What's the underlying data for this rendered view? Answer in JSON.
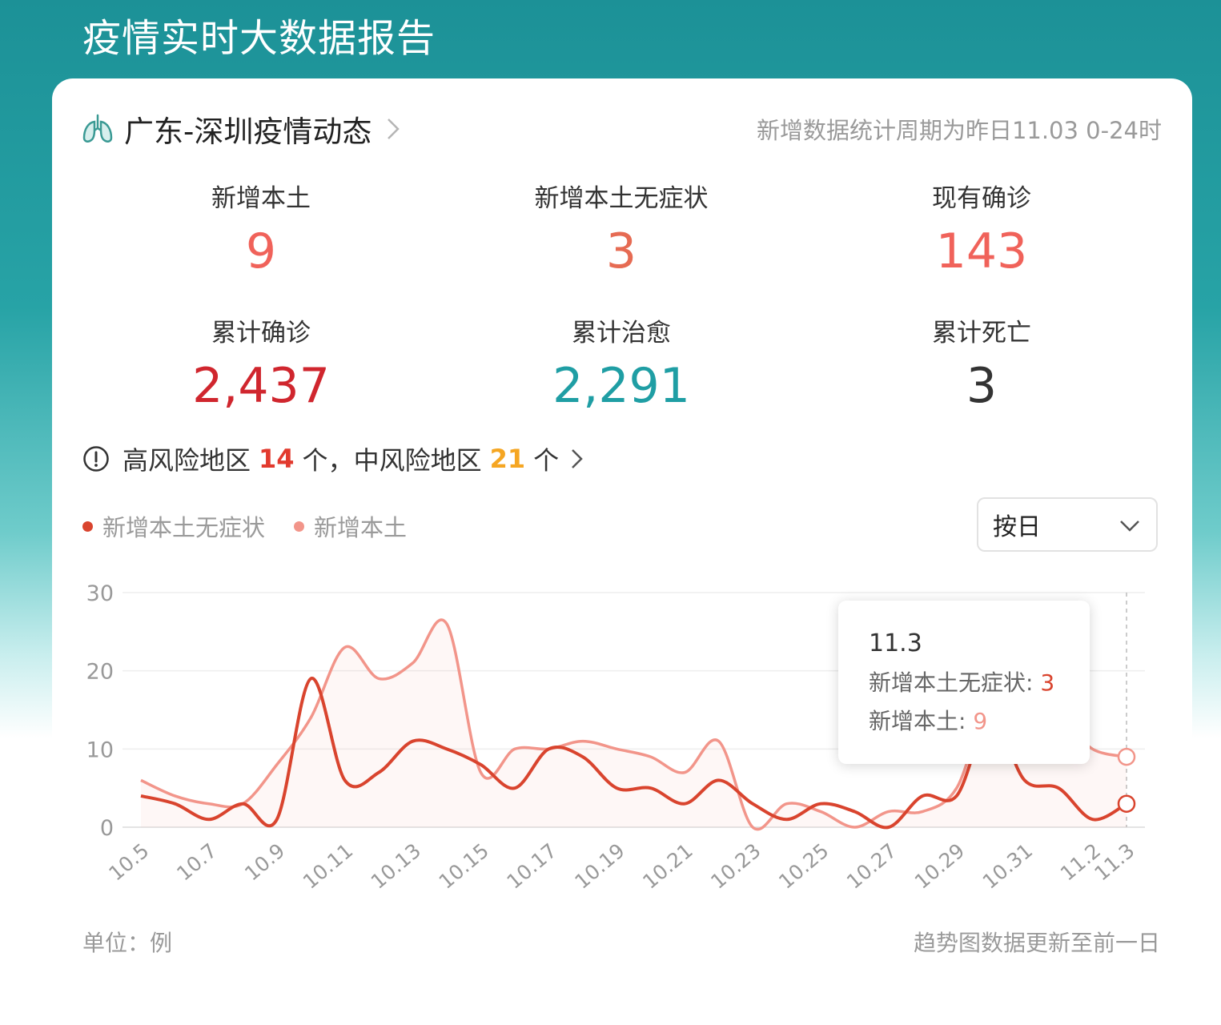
{
  "page_title": "疫情实时大数据报告",
  "header": {
    "region_title": "广东-深圳疫情动态",
    "stat_period": "新增数据统计周期为昨日11.03 0-24时"
  },
  "stats": [
    {
      "label": "新增本土",
      "value": "9",
      "color": "#f0625a"
    },
    {
      "label": "新增本土无症状",
      "value": "3",
      "color": "#e66b53"
    },
    {
      "label": "现有确诊",
      "value": "143",
      "color": "#f0625a"
    },
    {
      "label": "累计确诊",
      "value": "2,437",
      "color": "#d0262e"
    },
    {
      "label": "累计治愈",
      "value": "2,291",
      "color": "#1f9ea4"
    },
    {
      "label": "累计死亡",
      "value": "3",
      "color": "#333333"
    }
  ],
  "risk": {
    "high_prefix": "高风险地区",
    "high_count": "14",
    "high_suffix": "个，",
    "mid_prefix": "中风险地区",
    "mid_count": "21",
    "mid_suffix": "个"
  },
  "dropdown": {
    "selected": "按日"
  },
  "chart_data": {
    "type": "line",
    "title": "",
    "xlabel": "",
    "ylabel": "",
    "ylim": [
      0,
      30
    ],
    "yticks": [
      0,
      10,
      20,
      30
    ],
    "grid": true,
    "legend_placement": "top-left",
    "x": [
      "10.5",
      "10.6",
      "10.7",
      "10.8",
      "10.9",
      "10.10",
      "10.11",
      "10.12",
      "10.13",
      "10.14",
      "10.15",
      "10.16",
      "10.17",
      "10.18",
      "10.19",
      "10.20",
      "10.21",
      "10.22",
      "10.23",
      "10.24",
      "10.25",
      "10.26",
      "10.27",
      "10.28",
      "10.29",
      "10.30",
      "10.31",
      "11.1",
      "11.2",
      "11.3"
    ],
    "xtick_labels": [
      "10.5",
      "10.7",
      "10.9",
      "10.11",
      "10.13",
      "10.15",
      "10.17",
      "10.19",
      "10.21",
      "10.23",
      "10.25",
      "10.27",
      "10.29",
      "10.31",
      "11.2",
      "11.3"
    ],
    "series": [
      {
        "name": "新增本土无症状",
        "color": "#d9442e",
        "values": [
          4,
          3,
          1,
          3,
          1,
          19,
          6,
          7,
          11,
          10,
          8,
          5,
          10,
          9,
          5,
          5,
          3,
          6,
          3,
          1,
          3,
          2,
          0,
          4,
          4,
          14,
          6,
          5,
          1,
          3
        ]
      },
      {
        "name": "新增本土",
        "color": "#f2958a",
        "values": [
          6,
          4,
          3,
          3,
          8,
          14,
          23,
          19,
          21,
          26,
          7,
          10,
          10,
          11,
          10,
          9,
          7,
          11,
          0,
          3,
          2,
          0,
          2,
          2,
          5,
          16,
          12,
          14,
          10,
          9
        ]
      }
    ],
    "tooltip": {
      "date": "11.3",
      "rows": [
        {
          "name": "新增本土无症状",
          "value": "3"
        },
        {
          "name": "新增本土",
          "value": "9"
        }
      ]
    }
  },
  "footer": {
    "unit": "单位：例",
    "note": "趋势图数据更新至前一日"
  }
}
